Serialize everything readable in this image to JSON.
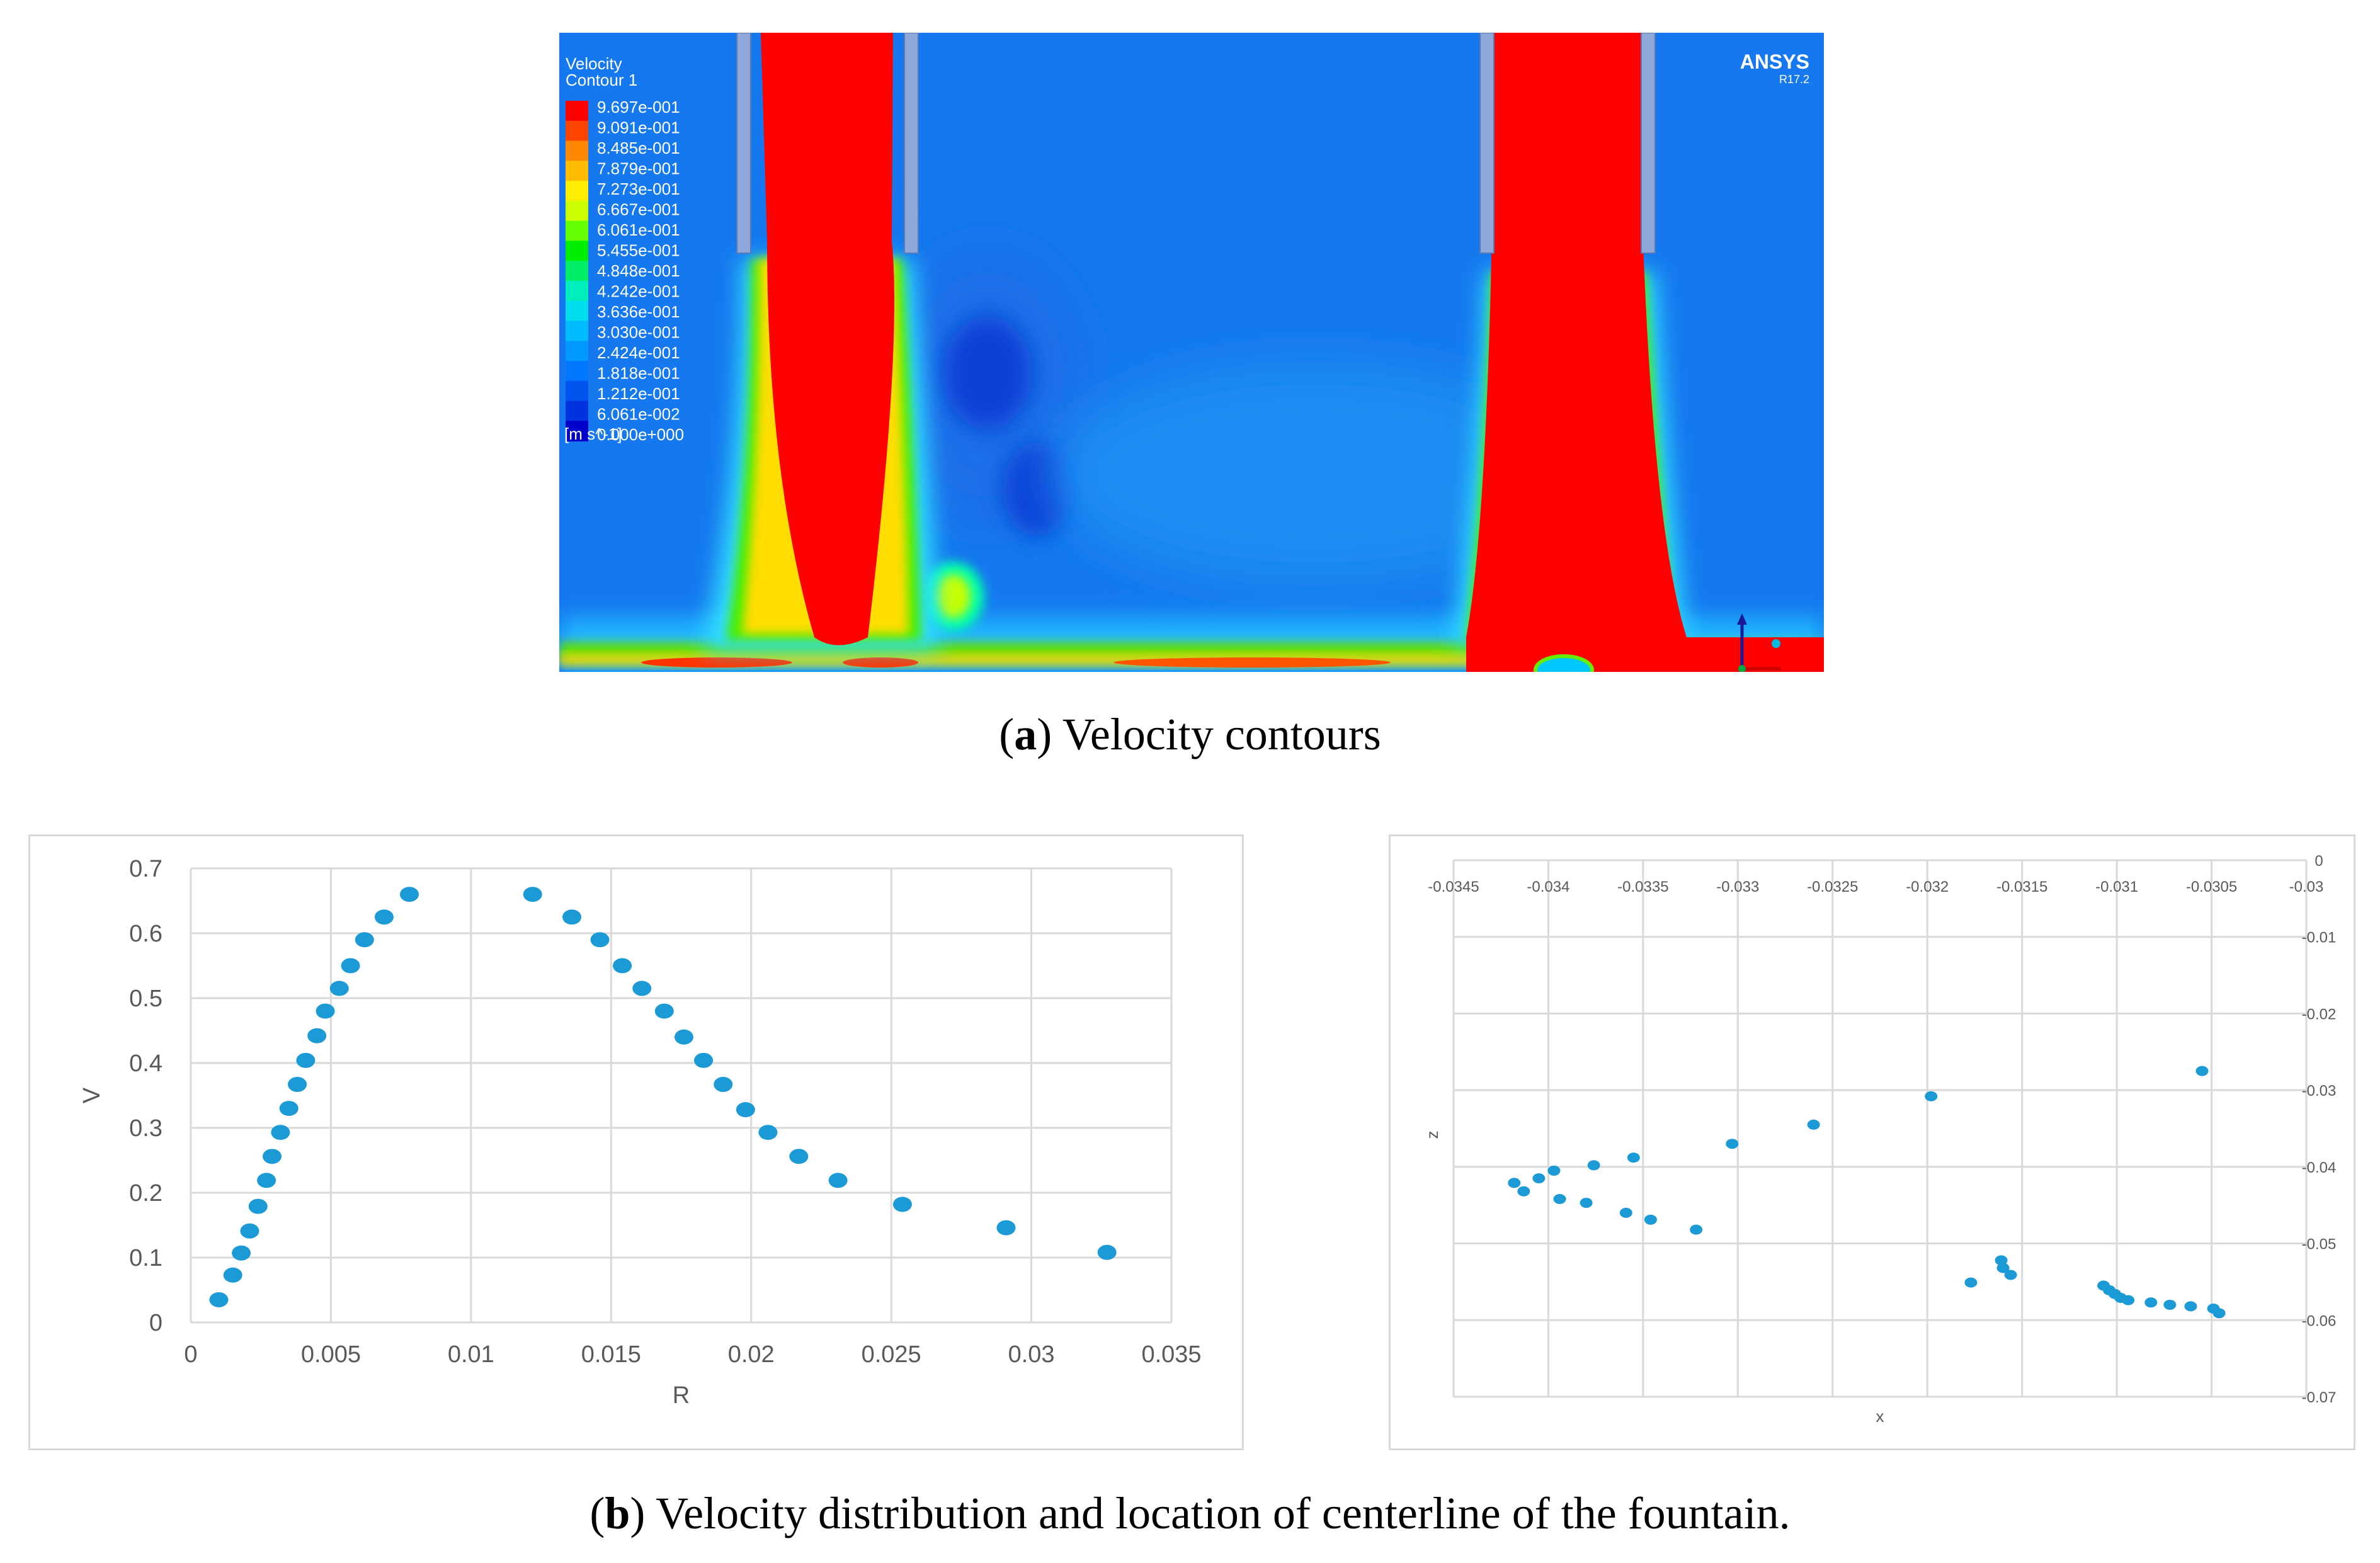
{
  "captions": {
    "a_letter": "a",
    "a_text": " Velocity contours",
    "b_letter": "b",
    "b_text": " Velocity distribution and location of centerline of the fountain."
  },
  "contour": {
    "legend_title_1": "Velocity",
    "legend_title_2": "Contour 1",
    "legend_values": [
      "9.697e-001",
      "9.091e-001",
      "8.485e-001",
      "7.879e-001",
      "7.273e-001",
      "6.667e-001",
      "6.061e-001",
      "5.455e-001",
      "4.848e-001",
      "4.242e-001",
      "3.636e-001",
      "3.030e-001",
      "2.424e-001",
      "1.818e-001",
      "1.212e-001",
      "6.061e-002",
      "0.000e+000"
    ],
    "legend_colors": [
      "#ff0000",
      "#ff4400",
      "#ff8800",
      "#ffbb00",
      "#ffee00",
      "#ccff00",
      "#66ff00",
      "#00ee00",
      "#00ee66",
      "#00eebb",
      "#00ddee",
      "#00bbff",
      "#0099ff",
      "#0077ff",
      "#0055ee",
      "#0033dd",
      "#0000cc"
    ],
    "legend_unit": "[m s^-1]",
    "logo": "ANSYS",
    "version": "R17.2",
    "colors": {
      "background": "#1578ee",
      "jet": "#ff0000",
      "nozzle": "#8fa8d8"
    }
  },
  "chart_data": [
    {
      "type": "scatter",
      "title": "",
      "xlabel": "R",
      "ylabel": "V",
      "xlim": [
        0,
        0.035
      ],
      "ylim": [
        0,
        0.7
      ],
      "grid": true,
      "xticks": [
        "0",
        "0.005",
        "0.01",
        "0.015",
        "0.02",
        "0.025",
        "0.03",
        "0.035"
      ],
      "yticks": [
        "0",
        "0.1",
        "0.2",
        "0.3",
        "0.4",
        "0.5",
        "0.6",
        "0.7"
      ],
      "color": "#1b9ad6",
      "points": [
        [
          0.001,
          0.035
        ],
        [
          0.0015,
          0.073
        ],
        [
          0.0018,
          0.107
        ],
        [
          0.0021,
          0.141
        ],
        [
          0.0024,
          0.179
        ],
        [
          0.0027,
          0.219
        ],
        [
          0.0029,
          0.256
        ],
        [
          0.0032,
          0.293
        ],
        [
          0.0035,
          0.33
        ],
        [
          0.0038,
          0.367
        ],
        [
          0.0041,
          0.404
        ],
        [
          0.0045,
          0.442
        ],
        [
          0.0048,
          0.48
        ],
        [
          0.0053,
          0.515
        ],
        [
          0.0057,
          0.55
        ],
        [
          0.0062,
          0.59
        ],
        [
          0.0069,
          0.625
        ],
        [
          0.0078,
          0.66
        ],
        [
          0.0122,
          0.66
        ],
        [
          0.0136,
          0.625
        ],
        [
          0.0146,
          0.59
        ],
        [
          0.0154,
          0.55
        ],
        [
          0.0161,
          0.515
        ],
        [
          0.0169,
          0.48
        ],
        [
          0.0176,
          0.44
        ],
        [
          0.0183,
          0.404
        ],
        [
          0.019,
          0.367
        ],
        [
          0.0198,
          0.328
        ],
        [
          0.0206,
          0.293
        ],
        [
          0.0217,
          0.256
        ],
        [
          0.0231,
          0.219
        ],
        [
          0.0254,
          0.182
        ],
        [
          0.0291,
          0.146
        ],
        [
          0.0327,
          0.108
        ]
      ]
    },
    {
      "type": "scatter",
      "title": "",
      "xlabel": "x",
      "ylabel": "z",
      "xlim": [
        -0.0345,
        -0.03
      ],
      "ylim": [
        -0.07,
        0
      ],
      "grid": true,
      "xticks": [
        "-0.0345",
        "-0.034",
        "-0.0335",
        "-0.033",
        "-0.0325",
        "-0.032",
        "-0.0315",
        "-0.031",
        "-0.0305",
        "-0.03"
      ],
      "yticks": [
        "0",
        "-0.01",
        "-0.02",
        "-0.03",
        "-0.04",
        "-0.05",
        "-0.06",
        "-0.07"
      ],
      "color": "#1b9ad6",
      "points": [
        [
          -0.03418,
          -0.0421
        ],
        [
          -0.03413,
          -0.0432
        ],
        [
          -0.03405,
          -0.0415
        ],
        [
          -0.03397,
          -0.0405
        ],
        [
          -0.03394,
          -0.0442
        ],
        [
          -0.0338,
          -0.0447
        ],
        [
          -0.03376,
          -0.0398
        ],
        [
          -0.03359,
          -0.046
        ],
        [
          -0.03355,
          -0.0388
        ],
        [
          -0.03346,
          -0.0469
        ],
        [
          -0.03322,
          -0.0482
        ],
        [
          -0.03303,
          -0.037
        ],
        [
          -0.0326,
          -0.0345
        ],
        [
          -0.03198,
          -0.0308
        ],
        [
          -0.03177,
          -0.0551
        ],
        [
          -0.03161,
          -0.0522
        ],
        [
          -0.0316,
          -0.0532
        ],
        [
          -0.03156,
          -0.0541
        ],
        [
          -0.03107,
          -0.0555
        ],
        [
          -0.03104,
          -0.0561
        ],
        [
          -0.03101,
          -0.0566
        ],
        [
          -0.03098,
          -0.0571
        ],
        [
          -0.03094,
          -0.0574
        ],
        [
          -0.03082,
          -0.0577
        ],
        [
          -0.03072,
          -0.058
        ],
        [
          -0.03061,
          -0.0582
        ],
        [
          -0.03055,
          -0.0275
        ],
        [
          -0.03049,
          -0.0585
        ],
        [
          -0.03046,
          -0.0591
        ]
      ]
    }
  ]
}
